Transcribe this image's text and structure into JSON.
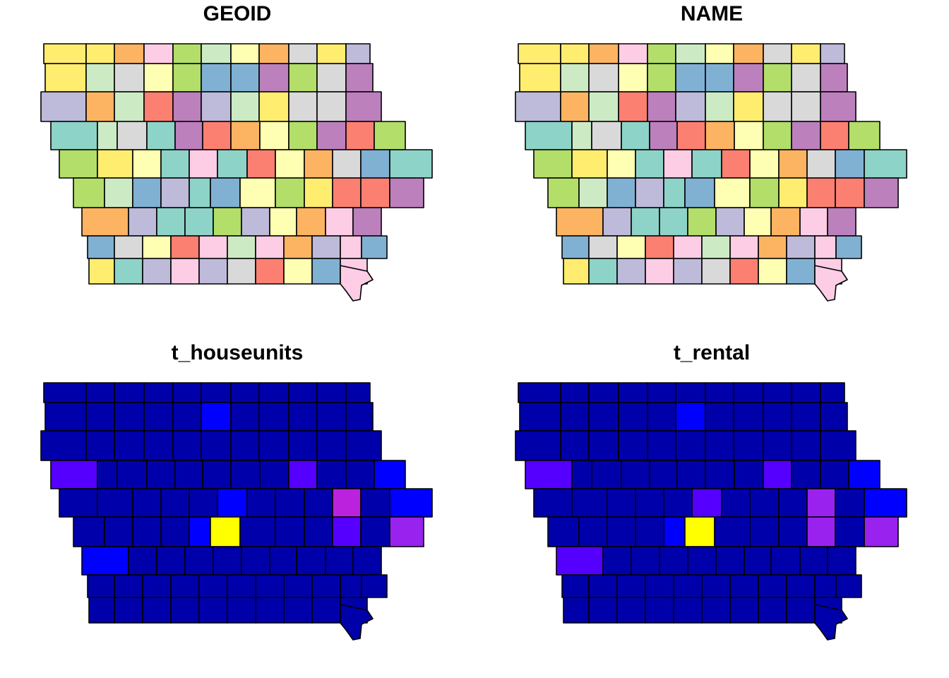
{
  "panels": [
    {
      "title": "GEOID",
      "variable": "GEOID",
      "scheme": "categorical"
    },
    {
      "title": "NAME",
      "variable": "NAME",
      "scheme": "categorical"
    },
    {
      "title": "t_houseunits",
      "variable": "t_houseunits",
      "scheme": "continuous"
    },
    {
      "title": "t_rental",
      "variable": "t_rental",
      "scheme": "continuous"
    }
  ],
  "colors": {
    "categorical_palette": [
      "#8DD3C7",
      "#FFFFB3",
      "#BEBADA",
      "#FB8072",
      "#80B1D3",
      "#FDB462",
      "#B3DE69",
      "#FCCDE5",
      "#D9D9D9",
      "#BC80BD",
      "#CCEBC5",
      "#FFED6F"
    ],
    "continuous_palette": [
      "#0000AA",
      "#0000FF",
      "#5500FF",
      "#9922EE",
      "#BB22DD",
      "#FFFF00"
    ],
    "outline": "#000000",
    "background": "#ffffff"
  }
}
